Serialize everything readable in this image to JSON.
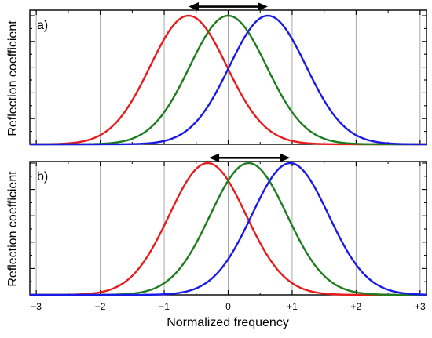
{
  "figure": {
    "x_axis_label": "Normalized frequency",
    "y_axis_label": "Reflection coefficient"
  },
  "chart_data": [
    {
      "type": "line",
      "panel_label": "a)",
      "xlabel": "",
      "ylabel": "Reflection coefficient",
      "xlim": [
        -3.1,
        3.1
      ],
      "ylim": [
        0,
        1
      ],
      "x_ticks": [
        -3,
        -2,
        -1,
        0,
        1,
        2,
        3
      ],
      "grid": true,
      "arrow": {
        "from": -0.62,
        "to": 0.62,
        "y": 1.07,
        "double_headed": true
      },
      "series": [
        {
          "color": "#e81c1c",
          "center": -0.62,
          "sigma": 0.6,
          "peak": 1.0
        },
        {
          "color": "#1e7d1e",
          "center": 0.0,
          "sigma": 0.6,
          "peak": 1.0
        },
        {
          "color": "#1a1ae6",
          "center": 0.62,
          "sigma": 0.6,
          "peak": 1.0
        }
      ]
    },
    {
      "type": "line",
      "panel_label": "b)",
      "xlabel": "Normalized frequency",
      "ylabel": "Reflection coefficient",
      "xlim": [
        -3.1,
        3.1
      ],
      "ylim": [
        0,
        1
      ],
      "x_ticks": [
        -3,
        -2,
        -1,
        0,
        1,
        2,
        3
      ],
      "x_tick_labels": [
        "−3",
        "−2",
        "−1",
        "0",
        "+1",
        "+2",
        "+3"
      ],
      "grid": true,
      "arrow": {
        "from": -0.3,
        "to": 0.97,
        "y": 1.04,
        "double_headed": true
      },
      "series": [
        {
          "color": "#e81c1c",
          "center": -0.32,
          "sigma": 0.6,
          "peak": 1.0
        },
        {
          "color": "#1e7d1e",
          "center": 0.32,
          "sigma": 0.6,
          "peak": 1.0
        },
        {
          "color": "#1a1ae6",
          "center": 0.97,
          "sigma": 0.6,
          "peak": 1.0
        }
      ]
    }
  ]
}
